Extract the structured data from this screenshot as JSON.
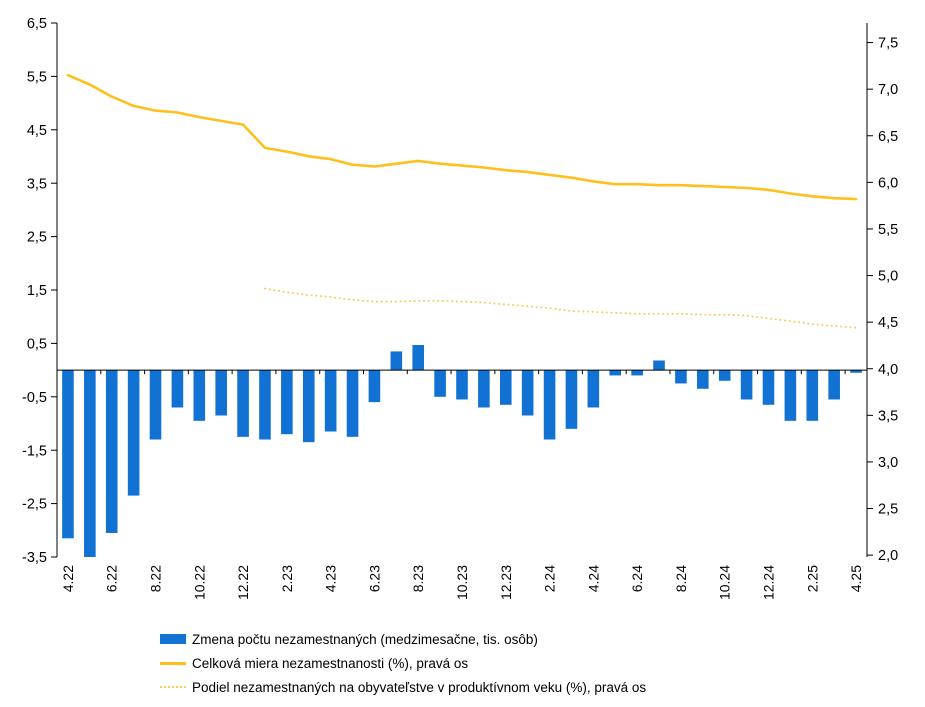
{
  "chart_data": {
    "type": "bar+line",
    "x": [
      "4.22",
      "5.22",
      "6.22",
      "7.22",
      "8.22",
      "9.22",
      "10.22",
      "11.22",
      "12.22",
      "1.23",
      "2.23",
      "3.23",
      "4.23",
      "5.23",
      "6.23",
      "7.23",
      "8.23",
      "9.23",
      "10.23",
      "11.23",
      "12.23",
      "1.24",
      "2.24",
      "3.24",
      "4.24",
      "5.24",
      "6.24",
      "7.24",
      "8.24",
      "9.24",
      "10.24",
      "11.24",
      "12.24",
      "1.25",
      "2.25",
      "3.25",
      "4.25"
    ],
    "x_label_every": 2,
    "x_tick_labels_shown": [
      "4.22",
      "6.22",
      "8.22",
      "10.22",
      "12.22",
      "2.23",
      "4.23",
      "6.23",
      "8.23",
      "10.23",
      "12.23",
      "2.24",
      "4.24",
      "6.24",
      "8.24",
      "10.24",
      "12.24",
      "2.25",
      "4.25"
    ],
    "series": [
      {
        "name": "Zmena počtu nezamestnaných (medzimesačne, tis. osôb)",
        "type": "bar",
        "axis": "left",
        "color": "#1272D4",
        "values": [
          -3.15,
          -3.5,
          -3.05,
          -2.35,
          -1.3,
          -0.7,
          -0.95,
          -0.85,
          -1.25,
          -1.3,
          -1.2,
          -1.35,
          -1.15,
          -1.25,
          -0.6,
          0.35,
          0.47,
          -0.5,
          -0.55,
          -0.7,
          -0.65,
          -0.85,
          -1.3,
          -1.1,
          -0.7,
          -0.1,
          -0.1,
          0.18,
          -0.25,
          -0.35,
          -0.2,
          -0.55,
          -0.65,
          -0.95,
          -0.95,
          -0.55,
          -0.05
        ]
      },
      {
        "name": "Celková miera nezamestnanosti (%), pravá os",
        "type": "line",
        "axis": "right",
        "color": "#FFC01E",
        "values": [
          7.15,
          7.05,
          6.92,
          6.82,
          6.77,
          6.75,
          6.7,
          6.66,
          6.62,
          6.37,
          6.33,
          6.28,
          6.25,
          6.19,
          6.17,
          6.2,
          6.23,
          6.2,
          6.18,
          6.16,
          6.13,
          6.11,
          6.08,
          6.05,
          6.01,
          5.98,
          5.98,
          5.97,
          5.97,
          5.96,
          5.95,
          5.94,
          5.92,
          5.88,
          5.85,
          5.83,
          5.82
        ]
      },
      {
        "name": "Podiel nezamestnaných na obyvateľstve v produktívnom veku (%), pravá os",
        "type": "dotted-line",
        "axis": "right",
        "color": "#F4CD5E",
        "values": [
          null,
          null,
          null,
          null,
          null,
          null,
          null,
          null,
          null,
          4.86,
          4.82,
          4.79,
          4.77,
          4.74,
          4.72,
          4.72,
          4.73,
          4.73,
          4.72,
          4.71,
          4.69,
          4.67,
          4.65,
          4.62,
          4.61,
          4.6,
          4.59,
          4.59,
          4.59,
          4.58,
          4.58,
          4.57,
          4.54,
          4.51,
          4.48,
          4.46,
          4.44
        ]
      }
    ],
    "left_axis": {
      "min": -3.5,
      "max": 6.5,
      "tick_values": [
        6.5,
        5.5,
        4.5,
        3.5,
        2.5,
        1.5,
        0.5,
        -0.5,
        -1.5,
        -2.5,
        -3.5
      ],
      "tick_labels": [
        "6,5",
        "5,5",
        "4,5",
        "3,5",
        "2,5",
        "1,5",
        "0,5",
        "-0,5",
        "-1,5",
        "-2,5",
        "-3,5"
      ]
    },
    "right_axis": {
      "value_at_plot_top": 7.71,
      "value_at_plot_bottom": 1.98,
      "tick_values": [
        7.5,
        7.0,
        6.5,
        6.0,
        5.5,
        5.0,
        4.5,
        4.0,
        3.5,
        3.0,
        2.5,
        2.0
      ],
      "tick_labels": [
        "7,5",
        "7,0",
        "6,5",
        "6,0",
        "5,5",
        "5,0",
        "4,5",
        "4,0",
        "3,5",
        "3,0",
        "2,5",
        "2,0"
      ]
    },
    "grid": false,
    "legend_position": "bottom-left"
  },
  "legend": {
    "items": [
      {
        "label": "Zmena počtu nezamestnaných (medzimesačne, tis. osôb)",
        "swatch": "bar"
      },
      {
        "label": "Celková miera nezamestnanosti (%), pravá os",
        "swatch": "line"
      },
      {
        "label": "Podiel nezamestnaných na obyvateľstve v produktívnom veku (%), pravá os",
        "swatch": "dotted"
      }
    ]
  }
}
